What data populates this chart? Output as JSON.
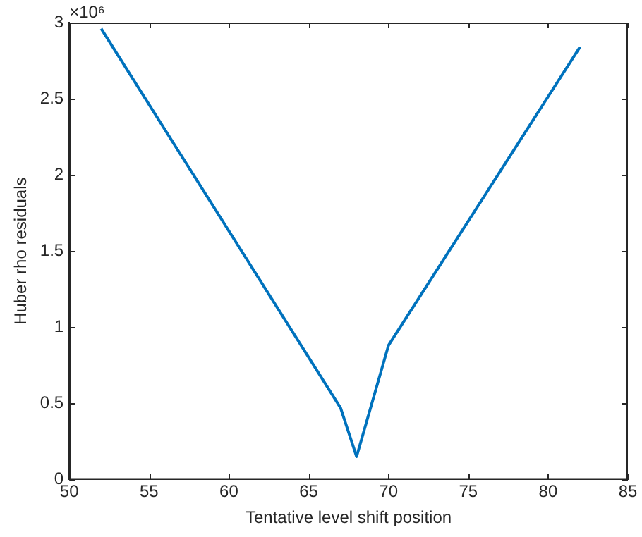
{
  "chart_data": {
    "type": "line",
    "xlabel": "Tentative level shift position",
    "ylabel": "Huber rho residuals",
    "x": [
      52,
      67,
      68,
      70,
      82
    ],
    "series": [
      {
        "color": "#0072bd",
        "values": [
          2.96,
          0.47,
          0.15,
          0.88,
          2.84
        ]
      }
    ],
    "xlim": [
      50,
      85
    ],
    "xticks": [
      50,
      55,
      60,
      65,
      70,
      75,
      80,
      85
    ],
    "ylim": [
      0,
      3
    ],
    "yticks": [
      0,
      0.5,
      1,
      1.5,
      2,
      2.5,
      3
    ],
    "annotations": [
      "×10⁶"
    ],
    "grid": false,
    "legend": false,
    "marker": "none",
    "line_style": "solid"
  }
}
